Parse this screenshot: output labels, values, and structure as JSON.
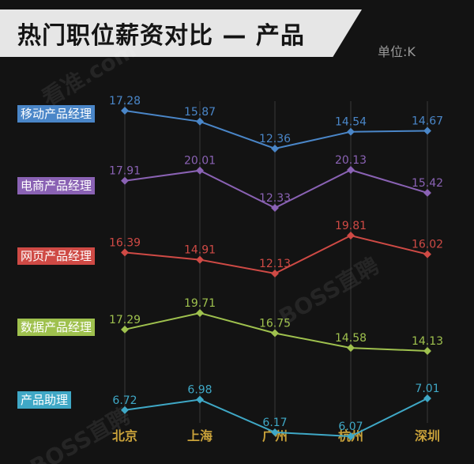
{
  "header": {
    "title": "热门职位薪资对比 — 产品",
    "unit": "单位:K"
  },
  "watermarks": [
    "看准.com",
    "BOSS直聘",
    "BOSS直聘"
  ],
  "chart_data": {
    "type": "line",
    "title": "热门职位薪资对比 — 产品",
    "categories": [
      "北京",
      "上海",
      "广州",
      "杭州",
      "深圳"
    ],
    "series": [
      {
        "name": "移动产品经理",
        "values": [
          17.28,
          15.87,
          12.36,
          14.54,
          14.67
        ],
        "color": "#4a86c8"
      },
      {
        "name": "电商产品经理",
        "values": [
          17.91,
          20.01,
          12.33,
          20.13,
          15.42
        ],
        "color": "#8a62b4"
      },
      {
        "name": "网页产品经理",
        "values": [
          16.39,
          14.91,
          12.13,
          19.81,
          16.02
        ],
        "color": "#cf4a45"
      },
      {
        "name": "数据产品经理",
        "values": [
          17.29,
          19.71,
          16.75,
          14.58,
          14.13
        ],
        "color": "#9fc14e"
      },
      {
        "name": "产品助理",
        "values": [
          6.72,
          6.98,
          6.17,
          6.07,
          7.01
        ],
        "color": "#3fa8c6"
      }
    ],
    "grid": {
      "vertical": true,
      "horizontal": false
    },
    "category_label_color": "#c9a23a",
    "vertical_grid_color": "#3a3a3a",
    "background_color": "#131313"
  }
}
